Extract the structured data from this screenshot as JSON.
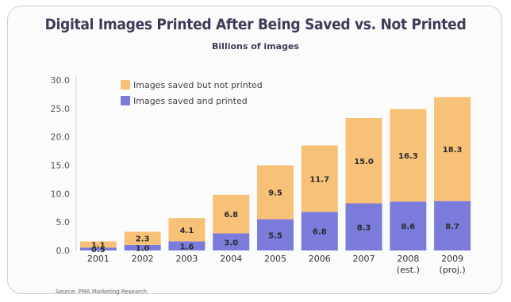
{
  "chart_data": {
    "type": "bar",
    "stacked": true,
    "title": "Digital Images Printed After Being Saved vs. Not Printed",
    "subtitle": "Billions of images",
    "categories": [
      "2001",
      "2002",
      "2003",
      "2004",
      "2005",
      "2006",
      "2007",
      "2008",
      "2009"
    ],
    "category_sublabels": [
      "",
      "",
      "",
      "",
      "",
      "",
      "",
      "(est.)",
      "(proj.)"
    ],
    "series": [
      {
        "name": "Images saved and printed",
        "values": [
          0.5,
          1.0,
          1.6,
          3.0,
          5.5,
          6.8,
          8.3,
          8.6,
          8.7
        ],
        "labels": [
          "0.5",
          "1.0",
          "1.6",
          "3.0",
          "5.5",
          "6.8",
          "8.3",
          "8.6",
          "8.7"
        ],
        "color": "#7b7bdc"
      },
      {
        "name": "Images saved but not printed",
        "values": [
          1.1,
          2.3,
          4.1,
          6.8,
          9.5,
          11.7,
          15.0,
          16.3,
          18.3
        ],
        "labels": [
          "1.1",
          "2.3",
          "4.1",
          "6.8",
          "9.5",
          "11.7",
          "15.0",
          "16.3",
          "18.3"
        ],
        "color": "#f8c178"
      }
    ],
    "ylim": [
      0,
      30
    ],
    "yticks": [
      "0.0",
      "5.0",
      "10.0",
      "15.0",
      "20.0",
      "25.0",
      "30.0"
    ],
    "grid": false,
    "legend": "top-left"
  },
  "source": "Source: PMA Marketing Research"
}
